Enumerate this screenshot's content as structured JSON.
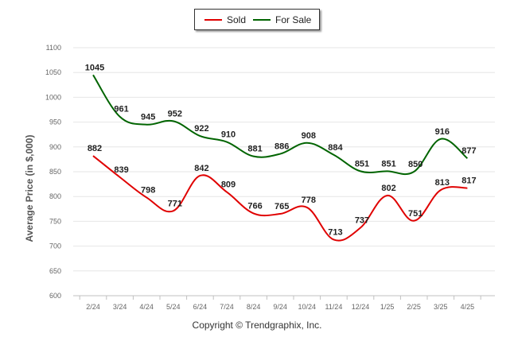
{
  "chart_data": {
    "type": "line",
    "categories": [
      "2/24",
      "3/24",
      "4/24",
      "5/24",
      "6/24",
      "7/24",
      "8/24",
      "9/24",
      "10/24",
      "11/24",
      "12/24",
      "1/25",
      "2/25",
      "3/25",
      "4/25"
    ],
    "series": [
      {
        "name": "Sold",
        "color": "#e00000",
        "values": [
          882,
          839,
          798,
          771,
          842,
          809,
          766,
          765,
          778,
          713,
          737,
          802,
          751,
          813,
          817
        ]
      },
      {
        "name": "For Sale",
        "color": "#006400",
        "values": [
          1045,
          961,
          945,
          952,
          922,
          910,
          881,
          886,
          908,
          884,
          851,
          851,
          850,
          916,
          877
        ]
      }
    ],
    "ylabel": "Average Price (in $,000)",
    "ylim": [
      600,
      1100
    ],
    "yticks": [
      600,
      650,
      700,
      750,
      800,
      850,
      900,
      950,
      1000,
      1050,
      1100
    ],
    "grid": true,
    "legend": "top-center"
  },
  "legend": {
    "sold": "Sold",
    "for_sale": "For Sale"
  },
  "footer": {
    "copyright": "Copyright © Trendgraphix, Inc."
  }
}
